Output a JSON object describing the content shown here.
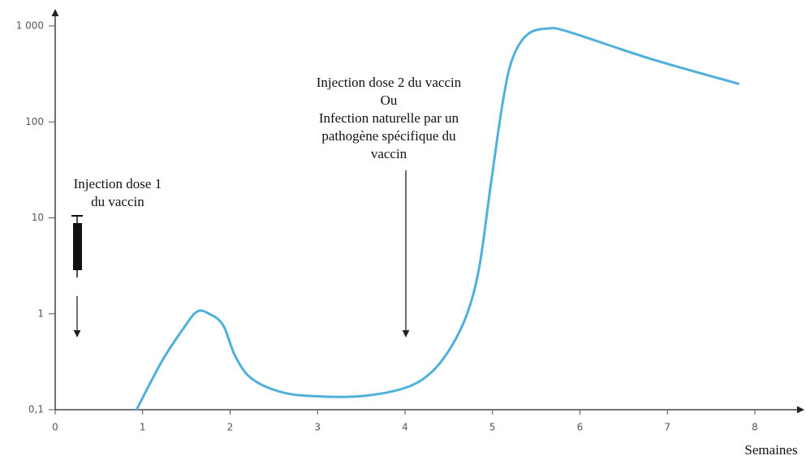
{
  "chart_data": {
    "type": "line",
    "x_label": "Semaines",
    "annotations": [
      {
        "lines": [
          "Injection dose 1",
          "du vaccin"
        ],
        "x": 0.25
      },
      {
        "lines": [
          "Injection dose 2 du vaccin",
          "Ou",
          "Infection naturelle par un",
          "pathogène spécifique du",
          "vaccin"
        ],
        "x": 4
      }
    ],
    "x": [
      0.93,
      1.22,
      1.46,
      1.62,
      1.76,
      1.92,
      2.06,
      2.25,
      2.62,
      3.08,
      3.55,
      4.01,
      4.29,
      4.52,
      4.71,
      4.85,
      4.98,
      5.12,
      5.23,
      5.4,
      5.63,
      5.87,
      6.79,
      7.81
    ],
    "series": [
      {
        "color": "#4fb0dc",
        "values": [
          0.1,
          0.32,
          0.69,
          1.05,
          1.0,
          0.76,
          0.36,
          0.21,
          0.15,
          0.137,
          0.14,
          0.17,
          0.24,
          0.44,
          1.0,
          3.1,
          22,
          166,
          460,
          815,
          940,
          870,
          460,
          250
        ]
      }
    ],
    "xlim": [
      0,
      8
    ],
    "xticks": [
      0,
      1,
      2,
      3,
      4,
      5,
      6,
      7,
      8
    ],
    "ylim": [
      0.1,
      1000
    ],
    "yscale": "log",
    "yticks": [
      {
        "value": 0.1,
        "label": "0,1"
      },
      1,
      10,
      100,
      {
        "value": 1000,
        "label": "1 000"
      }
    ]
  }
}
